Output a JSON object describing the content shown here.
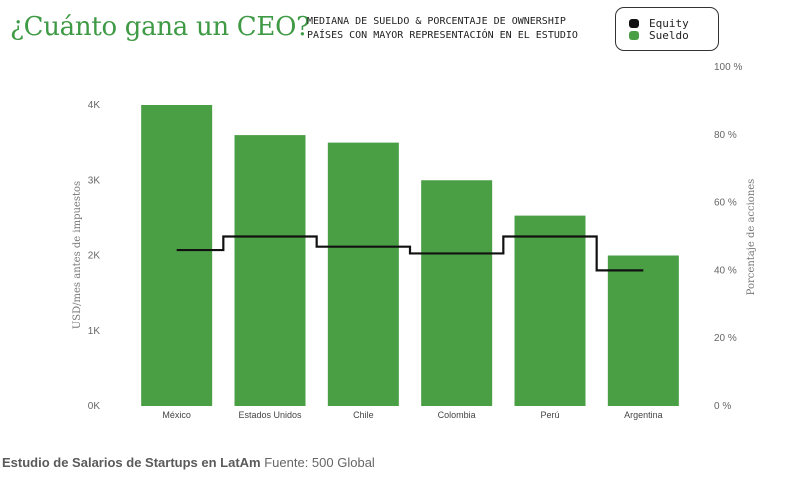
{
  "chart_data": {
    "type": "bar",
    "title": "¿Cuánto gana un CEO?",
    "subtitle_line1": "MEDIANA DE SUELDO & PORCENTAJE DE OWNERSHIP",
    "subtitle_line2": "PAÍSES CON MAYOR REPRESENTACIÓN EN EL ESTUDIO",
    "categories": [
      "México",
      "Estados Unidos",
      "Chile",
      "Colombia",
      "Perú",
      "Argentina"
    ],
    "series": [
      {
        "name": "Sueldo",
        "type": "bar",
        "axis": "left",
        "color": "#4a9f45",
        "values": [
          4000,
          3600,
          3500,
          3000,
          2530,
          2000
        ]
      },
      {
        "name": "Equity",
        "type": "step-line",
        "axis": "right",
        "color": "#111111",
        "values": [
          46,
          50,
          47,
          45,
          50,
          40
        ]
      }
    ],
    "ylabel": "USD/mes antes de impuestos",
    "ylim": [
      0,
      4500
    ],
    "yticks": [
      0,
      1000,
      2000,
      3000,
      4000
    ],
    "ytick_labels": [
      "0K",
      "1K",
      "2K",
      "3K",
      "4K"
    ],
    "y2label": "Porcentaje de acciones",
    "y2lim": [
      0,
      100
    ],
    "y2ticks": [
      0,
      20,
      40,
      60,
      80,
      100
    ],
    "y2tick_labels": [
      "0 %",
      "20 %",
      "40 %",
      "60 %",
      "80 %",
      "100 %"
    ],
    "legend": [
      "Equity",
      "Sueldo"
    ],
    "legend_position": "top-right",
    "grid": false
  },
  "footer": {
    "bold": "Estudio de Salarios de Startups en LatAm",
    "normal": " Fuente: 500 Global"
  },
  "colors": {
    "bar": "#4a9f45",
    "line": "#111111",
    "title": "#3f9a45"
  }
}
